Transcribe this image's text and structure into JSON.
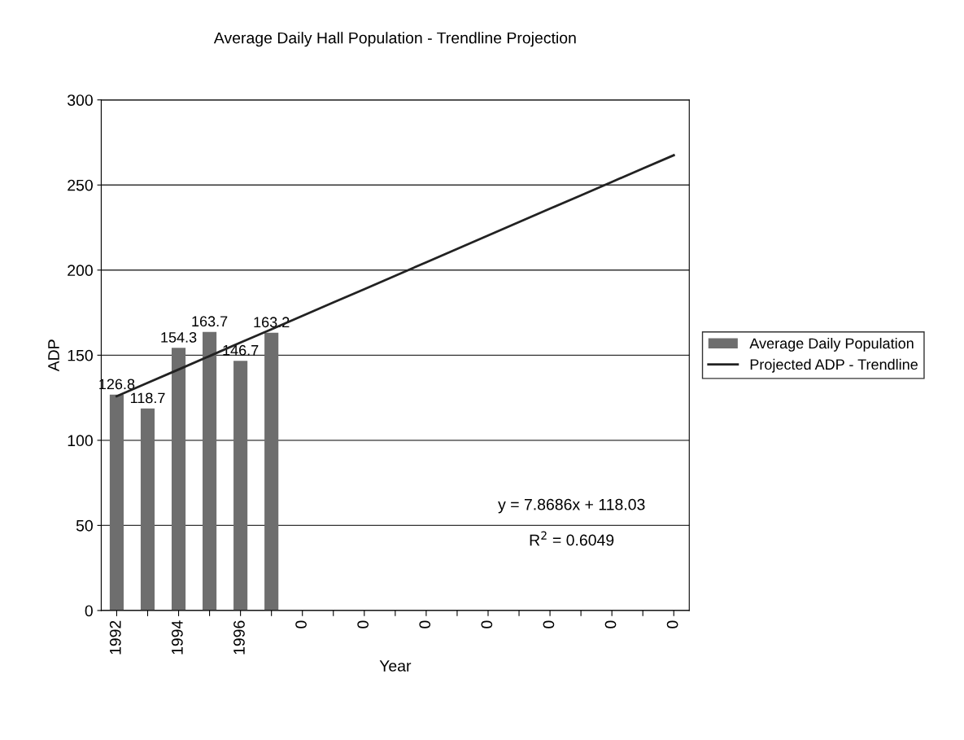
{
  "chart_data": {
    "type": "bar",
    "title": "Average Daily Hall Population - Trendline Projection",
    "xlabel": "Year",
    "ylabel": "ADP",
    "categories": [
      "1992",
      null,
      "1994",
      null,
      "1996",
      null,
      "0",
      null,
      "0",
      null,
      "0",
      null,
      "0",
      null,
      "0",
      null,
      "0",
      null,
      "0"
    ],
    "series": [
      {
        "name": "Average Daily Population",
        "type": "bar",
        "color": "#6e6e6e",
        "values": [
          126.8,
          118.7,
          154.3,
          163.7,
          146.7,
          163.2,
          null,
          null,
          null,
          null,
          null,
          null,
          null,
          null,
          null,
          null,
          null,
          null,
          null
        ],
        "data_labels": true
      },
      {
        "name": "Projected ADP - Trendline",
        "type": "line",
        "color": "#222222",
        "values": [
          125.9,
          133.8,
          141.6,
          149.5,
          157.4,
          165.2,
          173.1,
          181.0,
          188.8,
          196.7,
          204.6,
          212.5,
          220.3,
          228.2,
          236.1,
          243.9,
          251.8,
          259.7,
          267.5
        ]
      }
    ],
    "ylim": [
      0,
      300
    ],
    "yticks": [
      0,
      50,
      100,
      150,
      200,
      250,
      300
    ],
    "grid": "y",
    "legend": "right",
    "marker": "none",
    "line_style": "solid",
    "annotations": [
      "y = 7.8686x + 118.03",
      "R$^{2}$ = 0.6049"
    ]
  }
}
